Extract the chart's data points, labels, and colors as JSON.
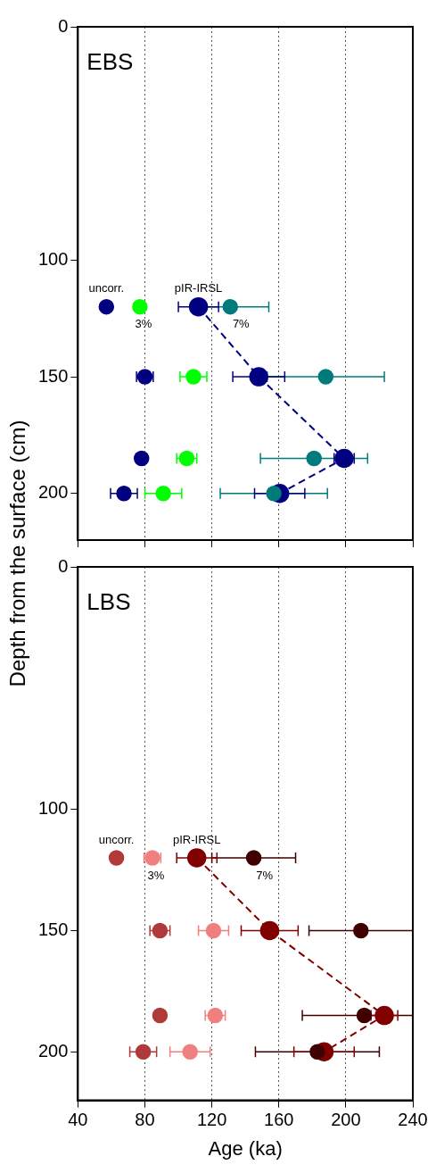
{
  "chart_data": [
    {
      "type": "scatter",
      "title": "EBS",
      "ylabel": "Depth from the surface (cm)",
      "xlim": [
        40,
        240
      ],
      "xticks": [
        40,
        80,
        120,
        160,
        200,
        240
      ],
      "ylim": [
        220,
        0
      ],
      "yticks": [
        0,
        100,
        150,
        200
      ],
      "tick_labels": "y",
      "grid": "x",
      "marker": "circle",
      "series": [
        {
          "color": "#000080",
          "x": [
            57,
            80,
            78,
            67.5
          ],
          "values": [
            120,
            150,
            185,
            200
          ],
          "xerrors": [
            null,
            5,
            null,
            8
          ]
        },
        {
          "color": "#00ff00",
          "x": [
            77,
            109,
            105,
            91
          ],
          "values": [
            120,
            150,
            185,
            200
          ],
          "xerrors": [
            null,
            8,
            6,
            11
          ]
        },
        {
          "color": "#007b7b",
          "x": [
            131,
            188,
            181,
            157
          ],
          "values": [
            120,
            150,
            185,
            200
          ],
          "xerrors": [
            23,
            35,
            32,
            32
          ]
        },
        {
          "type": "line",
          "line_style": "dashed",
          "color": "#000080",
          "x": [
            112,
            148,
            199,
            160.5
          ],
          "values": [
            120,
            150,
            185,
            200
          ],
          "xerrors": [
            12,
            15.5,
            6,
            15
          ]
        }
      ],
      "annotations": [
        "uncorr.",
        "3%",
        "7%",
        "pIR-IRSL"
      ]
    },
    {
      "type": "scatter",
      "title": "LBS",
      "xlabel": "Age (ka)",
      "xlim": [
        40,
        240
      ],
      "xticks": [
        40,
        80,
        120,
        160,
        200,
        240
      ],
      "ylim": [
        220,
        0
      ],
      "yticks": [
        0,
        100,
        150,
        200
      ],
      "grid": "x",
      "marker": "circle",
      "series": [
        {
          "color": "#b03a3a",
          "x": [
            63,
            89,
            89,
            79
          ],
          "values": [
            120,
            150,
            185,
            200
          ],
          "xerrors": [
            null,
            6,
            null,
            8
          ]
        },
        {
          "color": "#f08080",
          "x": [
            84.5,
            121,
            122,
            107
          ],
          "values": [
            120,
            150,
            185,
            200
          ],
          "xerrors": [
            5,
            9,
            6,
            12
          ]
        },
        {
          "color": "#400000",
          "x": [
            145,
            209,
            211,
            183
          ],
          "values": [
            120,
            150,
            185,
            200
          ],
          "xerrors": [
            25,
            31,
            [
              174,
              240
            ],
            37
          ]
        },
        {
          "type": "line",
          "line_style": "dashed",
          "color": "#800000",
          "x": [
            111,
            154.5,
            223,
            187
          ],
          "values": [
            120,
            150,
            185,
            200
          ],
          "xerrors": [
            12,
            17,
            8,
            18
          ]
        }
      ],
      "annotations": [
        "uncorr.",
        "3%",
        "7%",
        "pIR-IRSL"
      ]
    }
  ]
}
